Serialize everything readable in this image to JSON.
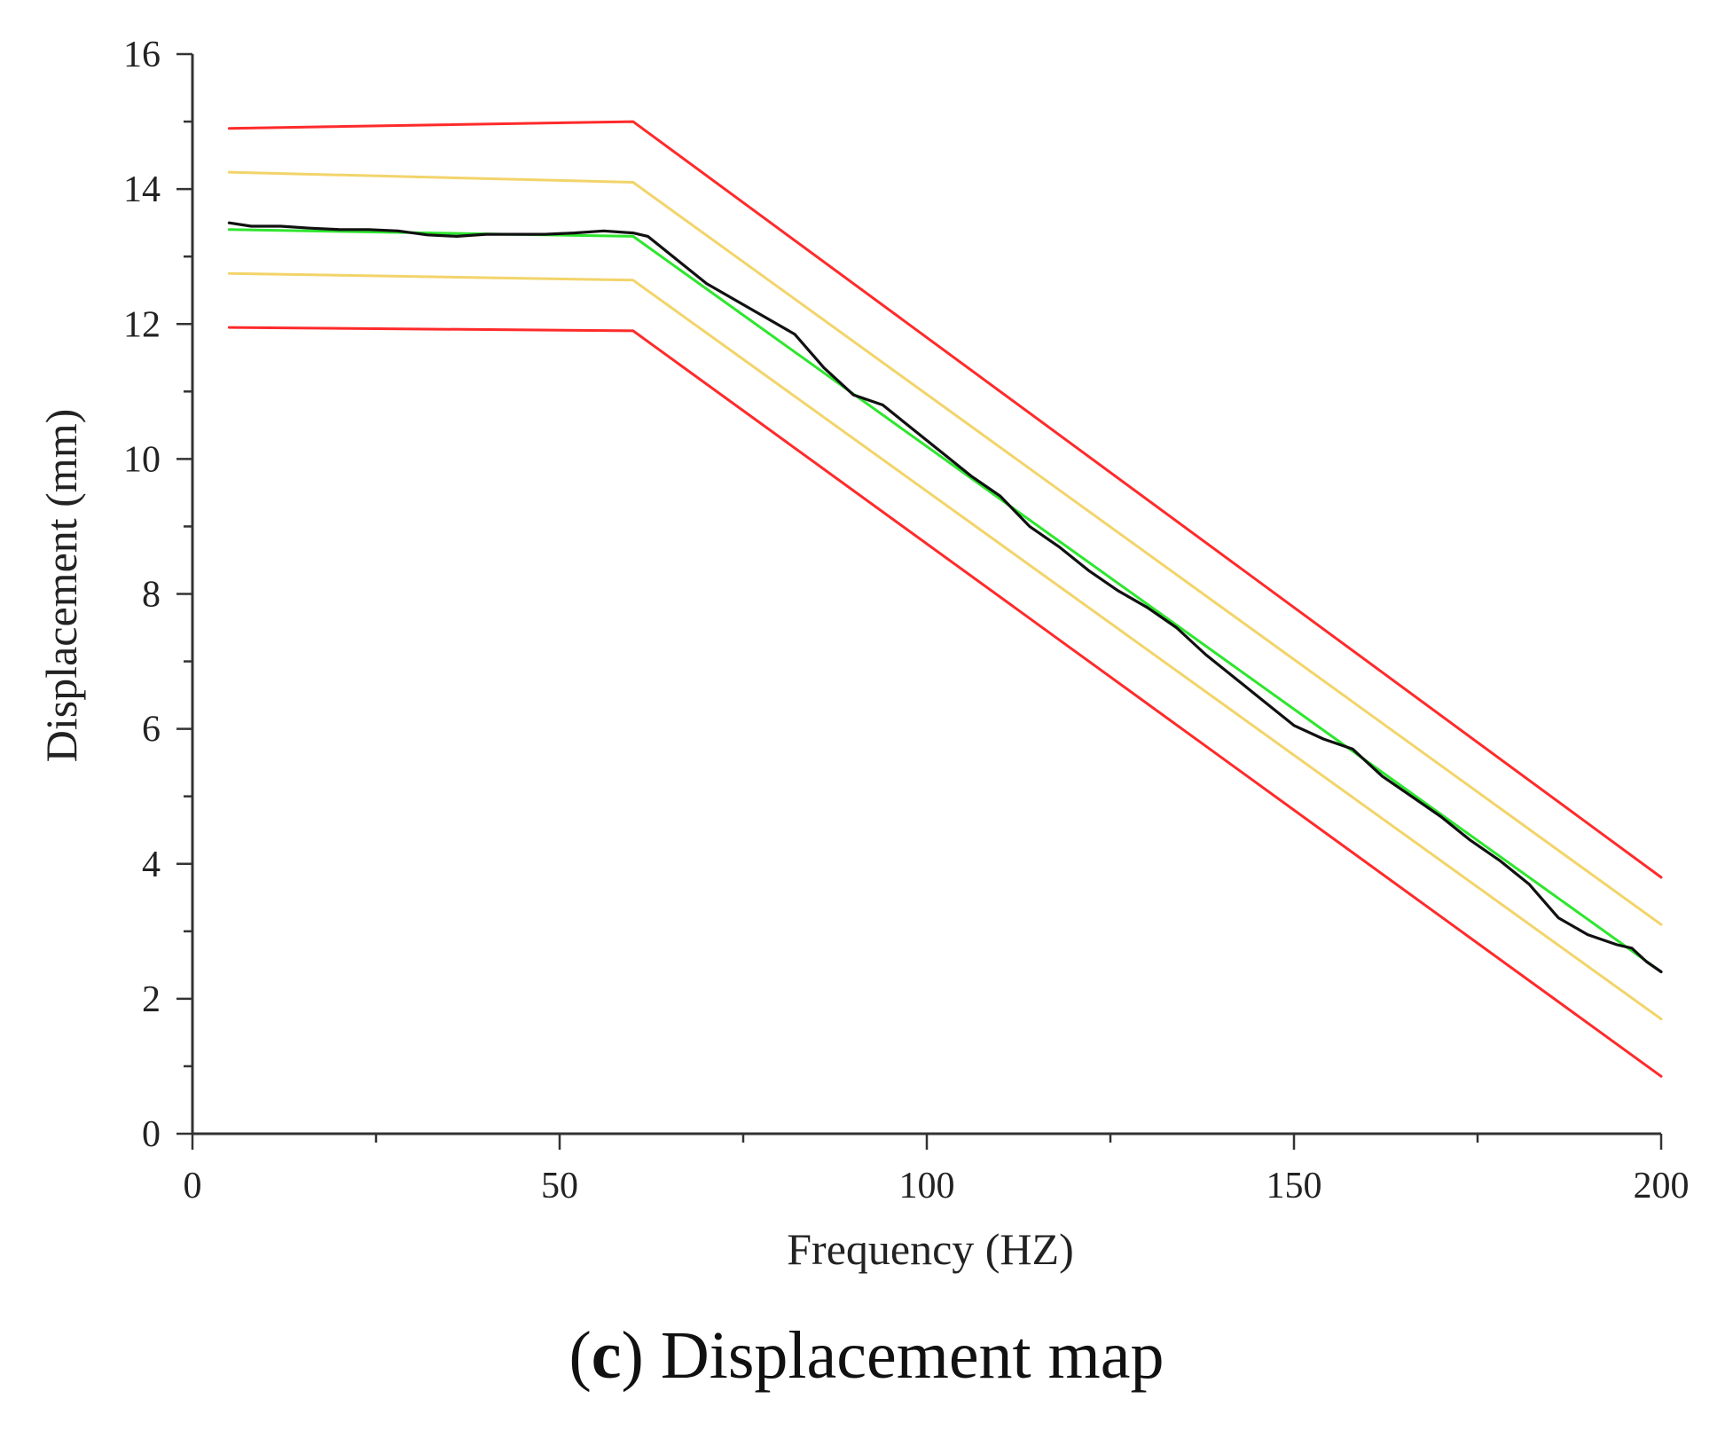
{
  "caption": {
    "prefix": "(",
    "letter": "c",
    "suffix": ") Displacement map"
  },
  "chart_data": {
    "type": "line",
    "xlabel": "Frequency (HZ)",
    "ylabel": "Displacement (mm)",
    "xlim": [
      0,
      200
    ],
    "ylim": [
      0,
      16
    ],
    "xticks": [
      0,
      50,
      100,
      150,
      200
    ],
    "yticks": [
      0,
      2,
      4,
      6,
      8,
      10,
      12,
      14,
      16
    ],
    "x_minor_step": 25,
    "y_minor_step": 1,
    "grid": false,
    "legend": "none",
    "series": [
      {
        "color": "#ff2a2a",
        "width": 3,
        "x": [
          5,
          60,
          200
        ],
        "y": [
          14.9,
          15.0,
          3.8
        ]
      },
      {
        "color": "#f2d46a",
        "width": 3,
        "x": [
          5,
          60,
          200
        ],
        "y": [
          14.25,
          14.1,
          3.1
        ]
      },
      {
        "color": "#2ee62e",
        "width": 3,
        "x": [
          5,
          60,
          200
        ],
        "y": [
          13.4,
          13.3,
          2.4
        ]
      },
      {
        "color": "#f2d46a",
        "width": 3,
        "x": [
          5,
          60,
          200
        ],
        "y": [
          12.75,
          12.65,
          1.7
        ]
      },
      {
        "color": "#ff2a2a",
        "width": 3,
        "x": [
          5,
          60,
          200
        ],
        "y": [
          11.95,
          11.9,
          0.85
        ]
      },
      {
        "color": "#111111",
        "width": 3.2,
        "x": [
          5,
          8,
          12,
          16,
          20,
          24,
          28,
          32,
          36,
          40,
          44,
          48,
          52,
          56,
          60,
          62,
          66,
          70,
          74,
          78,
          82,
          86,
          90,
          94,
          98,
          102,
          106,
          110,
          114,
          118,
          122,
          126,
          130,
          134,
          138,
          142,
          146,
          150,
          154,
          158,
          162,
          166,
          170,
          174,
          178,
          182,
          186,
          190,
          194,
          196,
          198,
          200
        ],
        "y": [
          13.5,
          13.45,
          13.45,
          13.42,
          13.4,
          13.4,
          13.38,
          13.32,
          13.3,
          13.33,
          13.33,
          13.33,
          13.35,
          13.38,
          13.35,
          13.3,
          12.95,
          12.6,
          12.35,
          12.1,
          11.85,
          11.35,
          10.95,
          10.8,
          10.45,
          10.1,
          9.75,
          9.45,
          9.0,
          8.7,
          8.35,
          8.05,
          7.8,
          7.5,
          7.1,
          6.75,
          6.4,
          6.05,
          5.85,
          5.7,
          5.3,
          5.0,
          4.7,
          4.35,
          4.05,
          3.7,
          3.2,
          2.95,
          2.8,
          2.75,
          2.55,
          2.4
        ]
      }
    ]
  }
}
